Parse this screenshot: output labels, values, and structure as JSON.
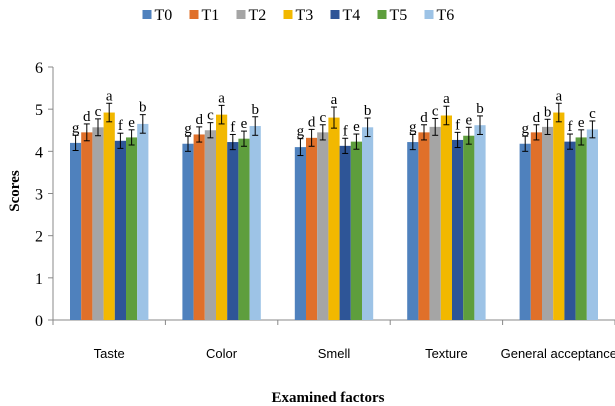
{
  "chart_data": {
    "type": "bar",
    "xlabel": "Examined factors",
    "ylabel": "Scores",
    "ylim": [
      0,
      6
    ],
    "yticks": [
      "0",
      "1",
      "2",
      "3",
      "4",
      "5",
      "6"
    ],
    "categories": [
      "Taste",
      "Color",
      "Smell",
      "Texture",
      "General acceptance"
    ],
    "legend_position": "top",
    "grid": false,
    "error_bars": true,
    "series": [
      {
        "name": "T0",
        "color": "#4F81BD",
        "values": [
          4.2,
          4.18,
          4.1,
          4.22,
          4.18
        ],
        "errors": [
          0.18,
          0.18,
          0.2,
          0.18,
          0.18
        ],
        "letters": [
          "g",
          "g",
          "g",
          "g",
          "g"
        ]
      },
      {
        "name": "T1",
        "color": "#E0702A",
        "values": [
          4.45,
          4.4,
          4.32,
          4.45,
          4.45
        ],
        "errors": [
          0.2,
          0.18,
          0.2,
          0.18,
          0.18
        ],
        "letters": [
          "d",
          "d",
          "d",
          "d",
          "d"
        ]
      },
      {
        "name": "T2",
        "color": "#A5A5A5",
        "values": [
          4.57,
          4.5,
          4.45,
          4.58,
          4.58
        ],
        "errors": [
          0.2,
          0.18,
          0.18,
          0.2,
          0.18
        ],
        "letters": [
          "c",
          "c",
          "c",
          "c",
          "b"
        ]
      },
      {
        "name": "T3",
        "color": "#F2B800",
        "values": [
          4.92,
          4.87,
          4.8,
          4.85,
          4.92
        ],
        "errors": [
          0.22,
          0.22,
          0.25,
          0.22,
          0.22
        ],
        "letters": [
          "a",
          "a",
          "a",
          "a",
          "a"
        ]
      },
      {
        "name": "T4",
        "color": "#2E5597",
        "values": [
          4.25,
          4.22,
          4.13,
          4.27,
          4.23
        ],
        "errors": [
          0.18,
          0.18,
          0.18,
          0.18,
          0.18
        ],
        "letters": [
          "f",
          "f",
          "f",
          "f",
          "f"
        ]
      },
      {
        "name": "T5",
        "color": "#5E9E3D",
        "values": [
          4.33,
          4.3,
          4.23,
          4.37,
          4.33
        ],
        "errors": [
          0.18,
          0.18,
          0.18,
          0.2,
          0.18
        ],
        "letters": [
          "e",
          "e",
          "e",
          "e",
          "e"
        ]
      },
      {
        "name": "T6",
        "color": "#9DC3E6",
        "values": [
          4.65,
          4.6,
          4.57,
          4.62,
          4.52
        ],
        "errors": [
          0.22,
          0.22,
          0.22,
          0.22,
          0.2
        ],
        "letters": [
          "b",
          "b",
          "b",
          "b",
          "c"
        ]
      }
    ]
  }
}
